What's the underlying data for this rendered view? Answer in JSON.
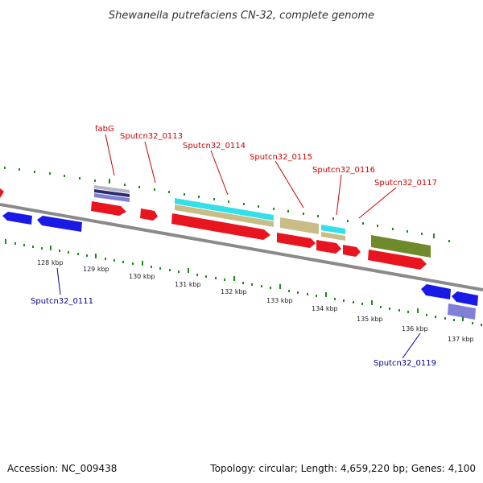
{
  "title": "Shewanella putrefaciens CN-32, complete genome",
  "footer": {
    "accession": "Accession: NC_009438",
    "summary": "Topology: circular; Length: 4,659,220 bp; Genes: 4,100"
  },
  "colors": {
    "forward_gene": "#e8141e",
    "reverse_gene": "#1a1ae6",
    "forward_label": "#cc0000",
    "reverse_label": "#00008b",
    "backbone": "#8a8a8a",
    "tick": "#1a8c1a",
    "cyan_feature": "#33e0e8",
    "tan_feature": "#c8bd86",
    "olive_feature": "#6e8a2a",
    "navy_feature": "#2a2a6e",
    "lavender_feature": "#8080d8"
  },
  "scale_labels": [
    "128 kbp",
    "129 kbp",
    "130 kbp",
    "131 kbp",
    "132 kbp",
    "133 kbp",
    "134 kbp",
    "135 kbp",
    "136 kbp",
    "137 kbp"
  ],
  "gene_labels": {
    "forward": [
      "fabG",
      "Sputcn32_0113",
      "Sputcn32_0114",
      "Sputcn32_0115",
      "Sputcn32_0116",
      "Sputcn32_0117"
    ],
    "reverse": [
      "Sputcn32_0111",
      "Sputcn32_0119"
    ]
  }
}
